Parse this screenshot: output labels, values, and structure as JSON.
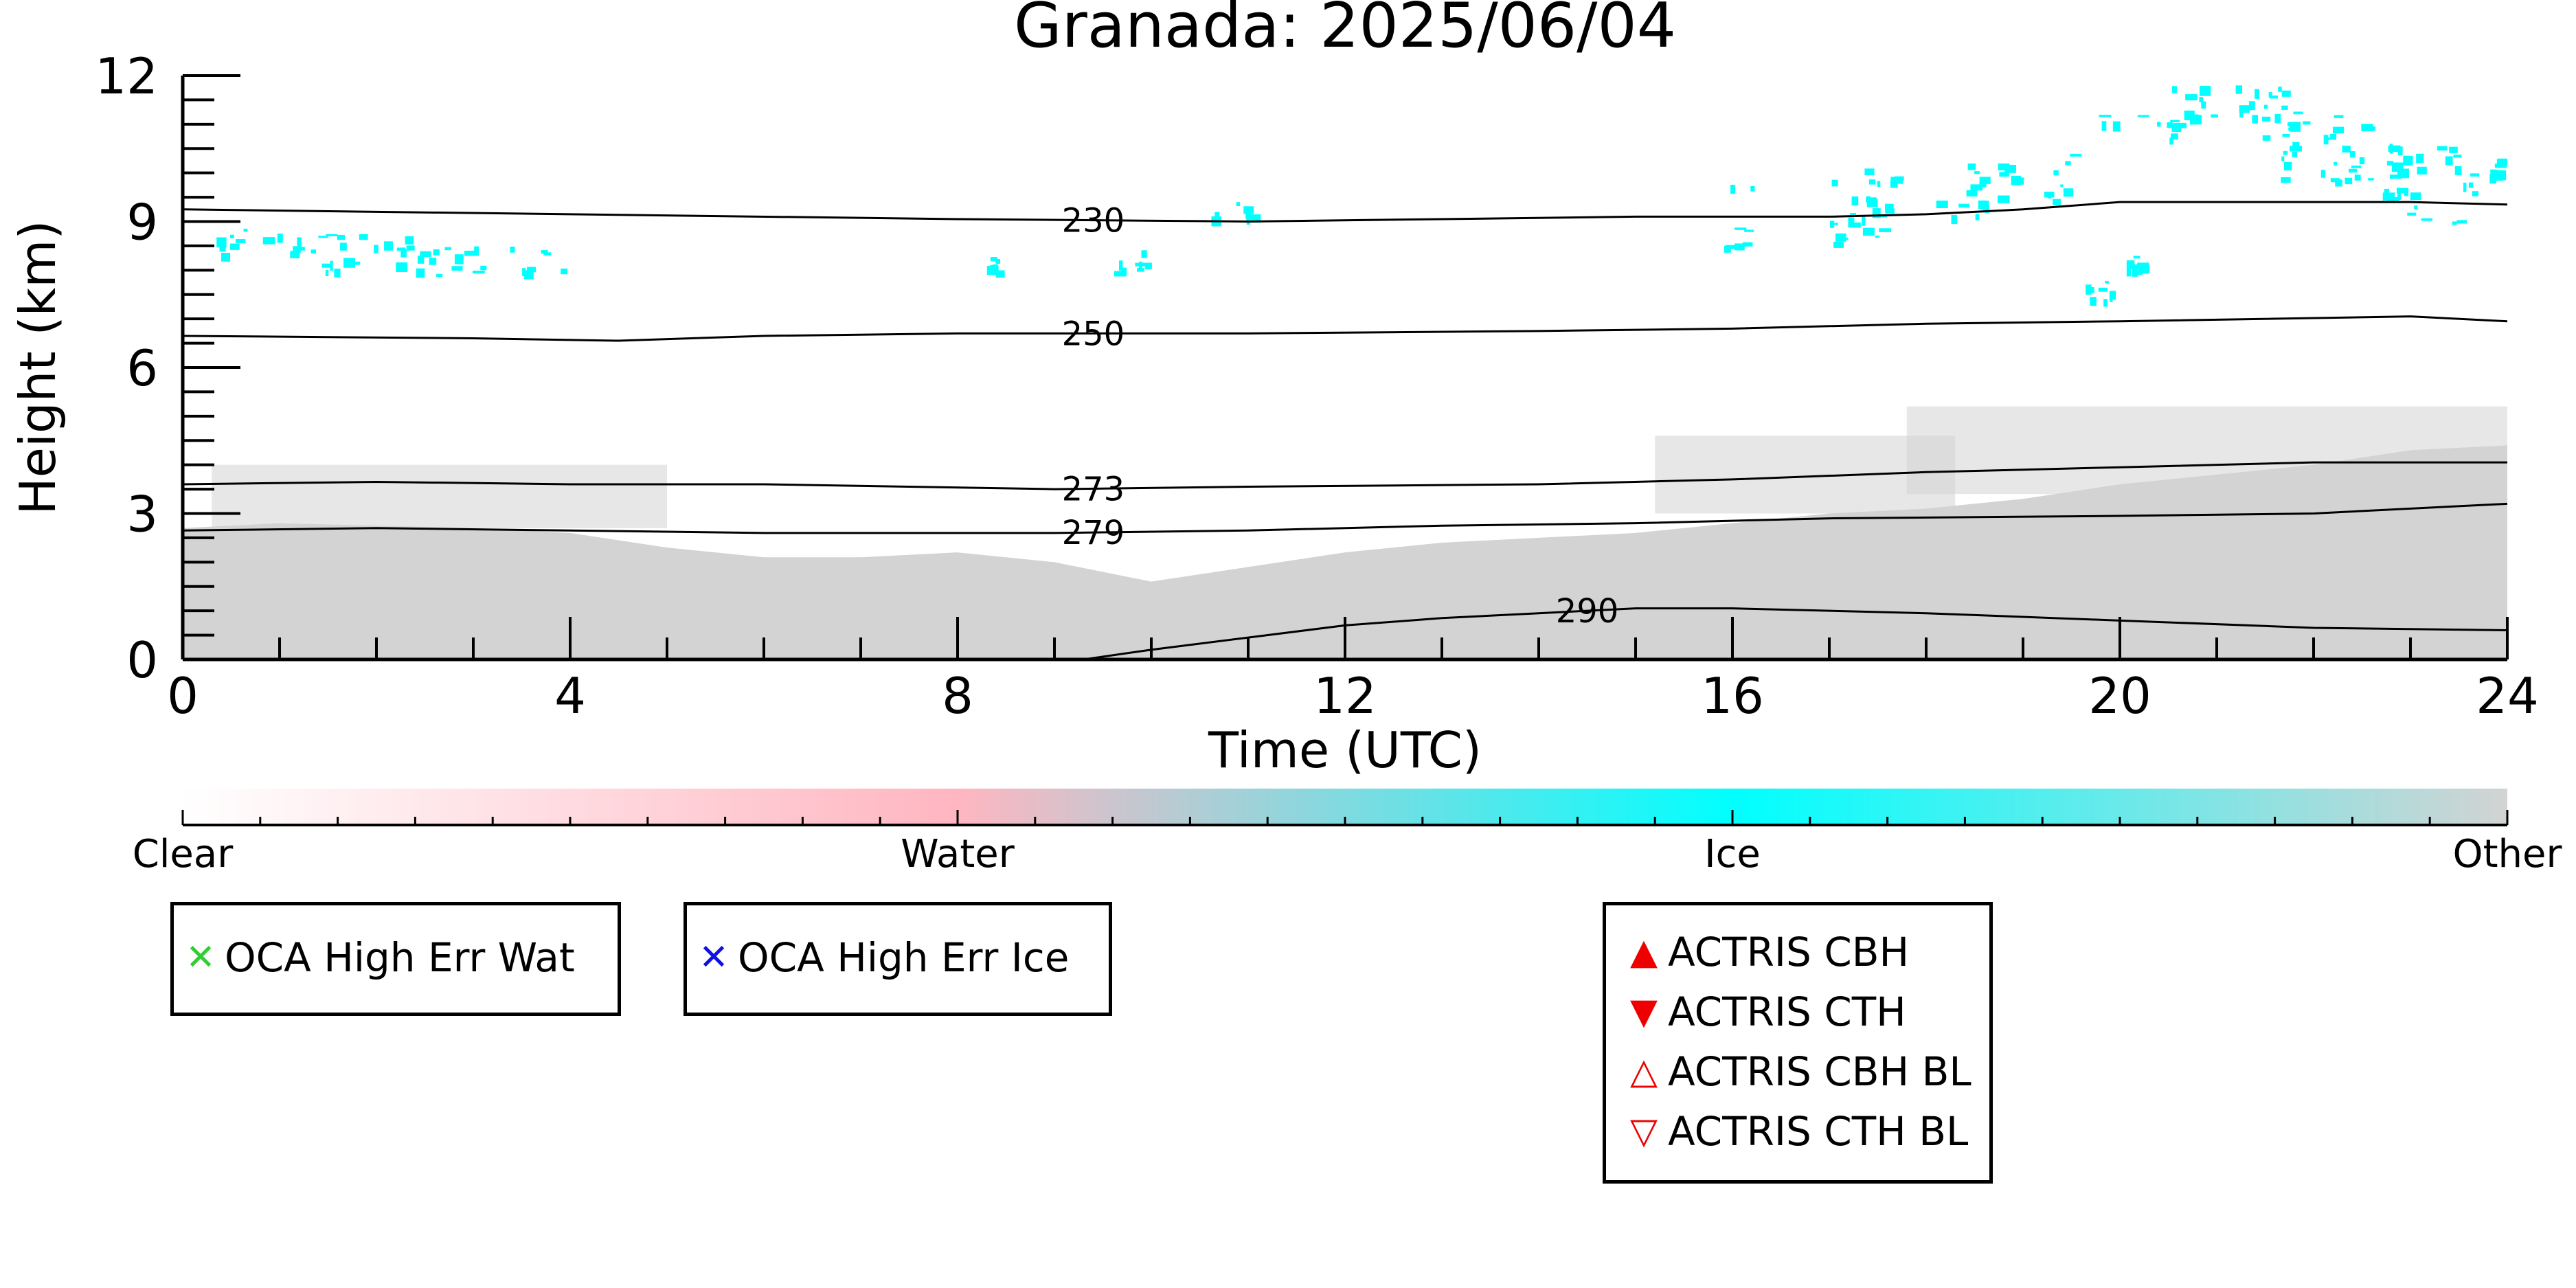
{
  "title": "Granada: 2025/06/04",
  "chart_data": {
    "type": "heatmap",
    "title": "Granada: 2025/06/04",
    "xlabel": "Time (UTC)",
    "ylabel": "Height (km)",
    "xlim": [
      0,
      24
    ],
    "ylim": [
      0,
      12
    ],
    "x_ticks": [
      0,
      4,
      8,
      12,
      16,
      20,
      24
    ],
    "y_ticks": [
      0,
      3,
      6,
      9,
      12
    ],
    "x_minor_step": 1,
    "y_minor_step": 0.5,
    "colorbar": {
      "labels": [
        "Clear",
        "Water",
        "Ice",
        "Other"
      ],
      "stops": [
        {
          "value": 0,
          "color": "#ffffff"
        },
        {
          "value": 0.333,
          "color": "#ffb6c1"
        },
        {
          "value": 0.667,
          "color": "#00ffff"
        },
        {
          "value": 1,
          "color": "#d3d3d3"
        }
      ]
    },
    "colors": {
      "other": "#d3d3d3",
      "ice": "#00ffff",
      "water": "#ffb6c1",
      "contour": "#000000"
    },
    "other_layer": {
      "category": "Other",
      "top_km": [
        [
          0,
          2.7
        ],
        [
          1,
          2.8
        ],
        [
          2,
          2.75
        ],
        [
          3,
          2.7
        ],
        [
          4,
          2.6
        ],
        [
          5,
          2.3
        ],
        [
          6,
          2.1
        ],
        [
          7,
          2.1
        ],
        [
          8,
          2.2
        ],
        [
          9,
          2.0
        ],
        [
          10,
          1.6
        ],
        [
          11,
          1.9
        ],
        [
          12,
          2.2
        ],
        [
          13,
          2.4
        ],
        [
          14,
          2.5
        ],
        [
          15,
          2.6
        ],
        [
          16,
          2.8
        ],
        [
          17,
          3.0
        ],
        [
          18,
          3.1
        ],
        [
          19,
          3.3
        ],
        [
          20,
          3.6
        ],
        [
          21,
          3.8
        ],
        [
          22,
          4.0
        ],
        [
          23,
          4.3
        ],
        [
          24,
          4.4
        ]
      ]
    },
    "other_patches": [
      {
        "t0": 0.3,
        "t1": 5.0,
        "h0": 2.7,
        "h1": 4.0
      },
      {
        "t0": 15.2,
        "t1": 18.3,
        "h0": 3.0,
        "h1": 4.6
      },
      {
        "t0": 17.8,
        "t1": 24.0,
        "h0": 3.4,
        "h1": 5.2
      }
    ],
    "ice_clouds": [
      {
        "t0": 0.25,
        "t1": 1.5,
        "h0": 8.3,
        "h1": 8.9
      },
      {
        "t0": 1.0,
        "t1": 2.5,
        "h0": 8.0,
        "h1": 8.8
      },
      {
        "t0": 2.5,
        "t1": 4.0,
        "h0": 7.9,
        "h1": 8.5
      },
      {
        "t0": 8.3,
        "t1": 8.4,
        "h0": 7.9,
        "h1": 8.6
      },
      {
        "t0": 9.5,
        "t1": 10.0,
        "h0": 7.9,
        "h1": 8.5
      },
      {
        "t0": 10.6,
        "t1": 11.1,
        "h0": 9.1,
        "h1": 9.4
      },
      {
        "t0": 15.9,
        "t1": 16.2,
        "h0": 8.5,
        "h1": 9.9
      },
      {
        "t0": 16.9,
        "t1": 17.7,
        "h0": 8.5,
        "h1": 10.2
      },
      {
        "t0": 18.1,
        "t1": 18.9,
        "h0": 9.0,
        "h1": 10.2
      },
      {
        "t0": 19.2,
        "t1": 19.5,
        "h0": 9.3,
        "h1": 10.4
      },
      {
        "t0": 19.7,
        "t1": 20.6,
        "h0": 10.8,
        "h1": 11.2
      },
      {
        "t0": 20.4,
        "t1": 21.8,
        "h0": 10.7,
        "h1": 11.8
      },
      {
        "t0": 21.6,
        "t1": 22.6,
        "h0": 9.8,
        "h1": 11.3
      },
      {
        "t0": 22.7,
        "t1": 23.7,
        "h0": 9.0,
        "h1": 10.6
      },
      {
        "t0": 23.8,
        "t1": 24.0,
        "h0": 9.9,
        "h1": 10.3
      },
      {
        "t0": 19.6,
        "t1": 19.9,
        "h0": 7.3,
        "h1": 7.8
      },
      {
        "t0": 20.0,
        "t1": 20.2,
        "h0": 8.0,
        "h1": 8.3
      }
    ],
    "contours": [
      {
        "label": "230",
        "label_at": 9.4,
        "points": [
          [
            0,
            9.25
          ],
          [
            4,
            9.15
          ],
          [
            8,
            9.05
          ],
          [
            11,
            9.0
          ],
          [
            13,
            9.05
          ],
          [
            15,
            9.1
          ],
          [
            17,
            9.1
          ],
          [
            18,
            9.15
          ],
          [
            19,
            9.25
          ],
          [
            20,
            9.4
          ],
          [
            23,
            9.4
          ],
          [
            24,
            9.35
          ]
        ]
      },
      {
        "label": "250",
        "label_at": 9.4,
        "points": [
          [
            0,
            6.65
          ],
          [
            3,
            6.6
          ],
          [
            4.5,
            6.55
          ],
          [
            6,
            6.65
          ],
          [
            8,
            6.7
          ],
          [
            11,
            6.7
          ],
          [
            14,
            6.75
          ],
          [
            16,
            6.8
          ],
          [
            18,
            6.9
          ],
          [
            20,
            6.95
          ],
          [
            23,
            7.05
          ],
          [
            24,
            6.95
          ]
        ]
      },
      {
        "label": "273",
        "label_at": 9.4,
        "points": [
          [
            0,
            3.6
          ],
          [
            2,
            3.65
          ],
          [
            4,
            3.6
          ],
          [
            6,
            3.6
          ],
          [
            9,
            3.5
          ],
          [
            11,
            3.55
          ],
          [
            14,
            3.6
          ],
          [
            16,
            3.7
          ],
          [
            18,
            3.85
          ],
          [
            20,
            3.95
          ],
          [
            22,
            4.05
          ],
          [
            24,
            4.05
          ]
        ]
      },
      {
        "label": "279",
        "label_at": 9.4,
        "points": [
          [
            0,
            2.65
          ],
          [
            2,
            2.7
          ],
          [
            4,
            2.65
          ],
          [
            6,
            2.6
          ],
          [
            9,
            2.6
          ],
          [
            11,
            2.65
          ],
          [
            13,
            2.75
          ],
          [
            15,
            2.8
          ],
          [
            17,
            2.9
          ],
          [
            20,
            2.95
          ],
          [
            22,
            3.0
          ],
          [
            24,
            3.2
          ]
        ]
      },
      {
        "label": "290",
        "label_at": 14.5,
        "points": [
          [
            8.5,
            0.0
          ],
          [
            9.3,
            0.0
          ],
          [
            10,
            0.2
          ],
          [
            11,
            0.45
          ],
          [
            12,
            0.7
          ],
          [
            13,
            0.85
          ],
          [
            14,
            0.95
          ],
          [
            15,
            1.05
          ],
          [
            16,
            1.05
          ],
          [
            17,
            1.0
          ],
          [
            18,
            0.95
          ],
          [
            20,
            0.8
          ],
          [
            22,
            0.65
          ],
          [
            24,
            0.6
          ]
        ]
      }
    ],
    "legends": [
      {
        "id": "oca-water",
        "entries": [
          {
            "marker": "✕",
            "color": "#33cc33",
            "label": "OCA High Err Wat"
          }
        ]
      },
      {
        "id": "oca-ice",
        "entries": [
          {
            "marker": "✕",
            "color": "#1010e0",
            "label": "OCA High Err Ice"
          }
        ]
      },
      {
        "id": "actris",
        "entries": [
          {
            "marker": "▲",
            "color": "#ee0000",
            "label": "ACTRIS CBH"
          },
          {
            "marker": "▼",
            "color": "#ee0000",
            "label": "ACTRIS CTH"
          },
          {
            "marker": "△",
            "color": "#ee0000",
            "label": "ACTRIS CBH BL"
          },
          {
            "marker": "▽",
            "color": "#ee0000",
            "label": "ACTRIS CTH BL"
          }
        ]
      }
    ]
  }
}
